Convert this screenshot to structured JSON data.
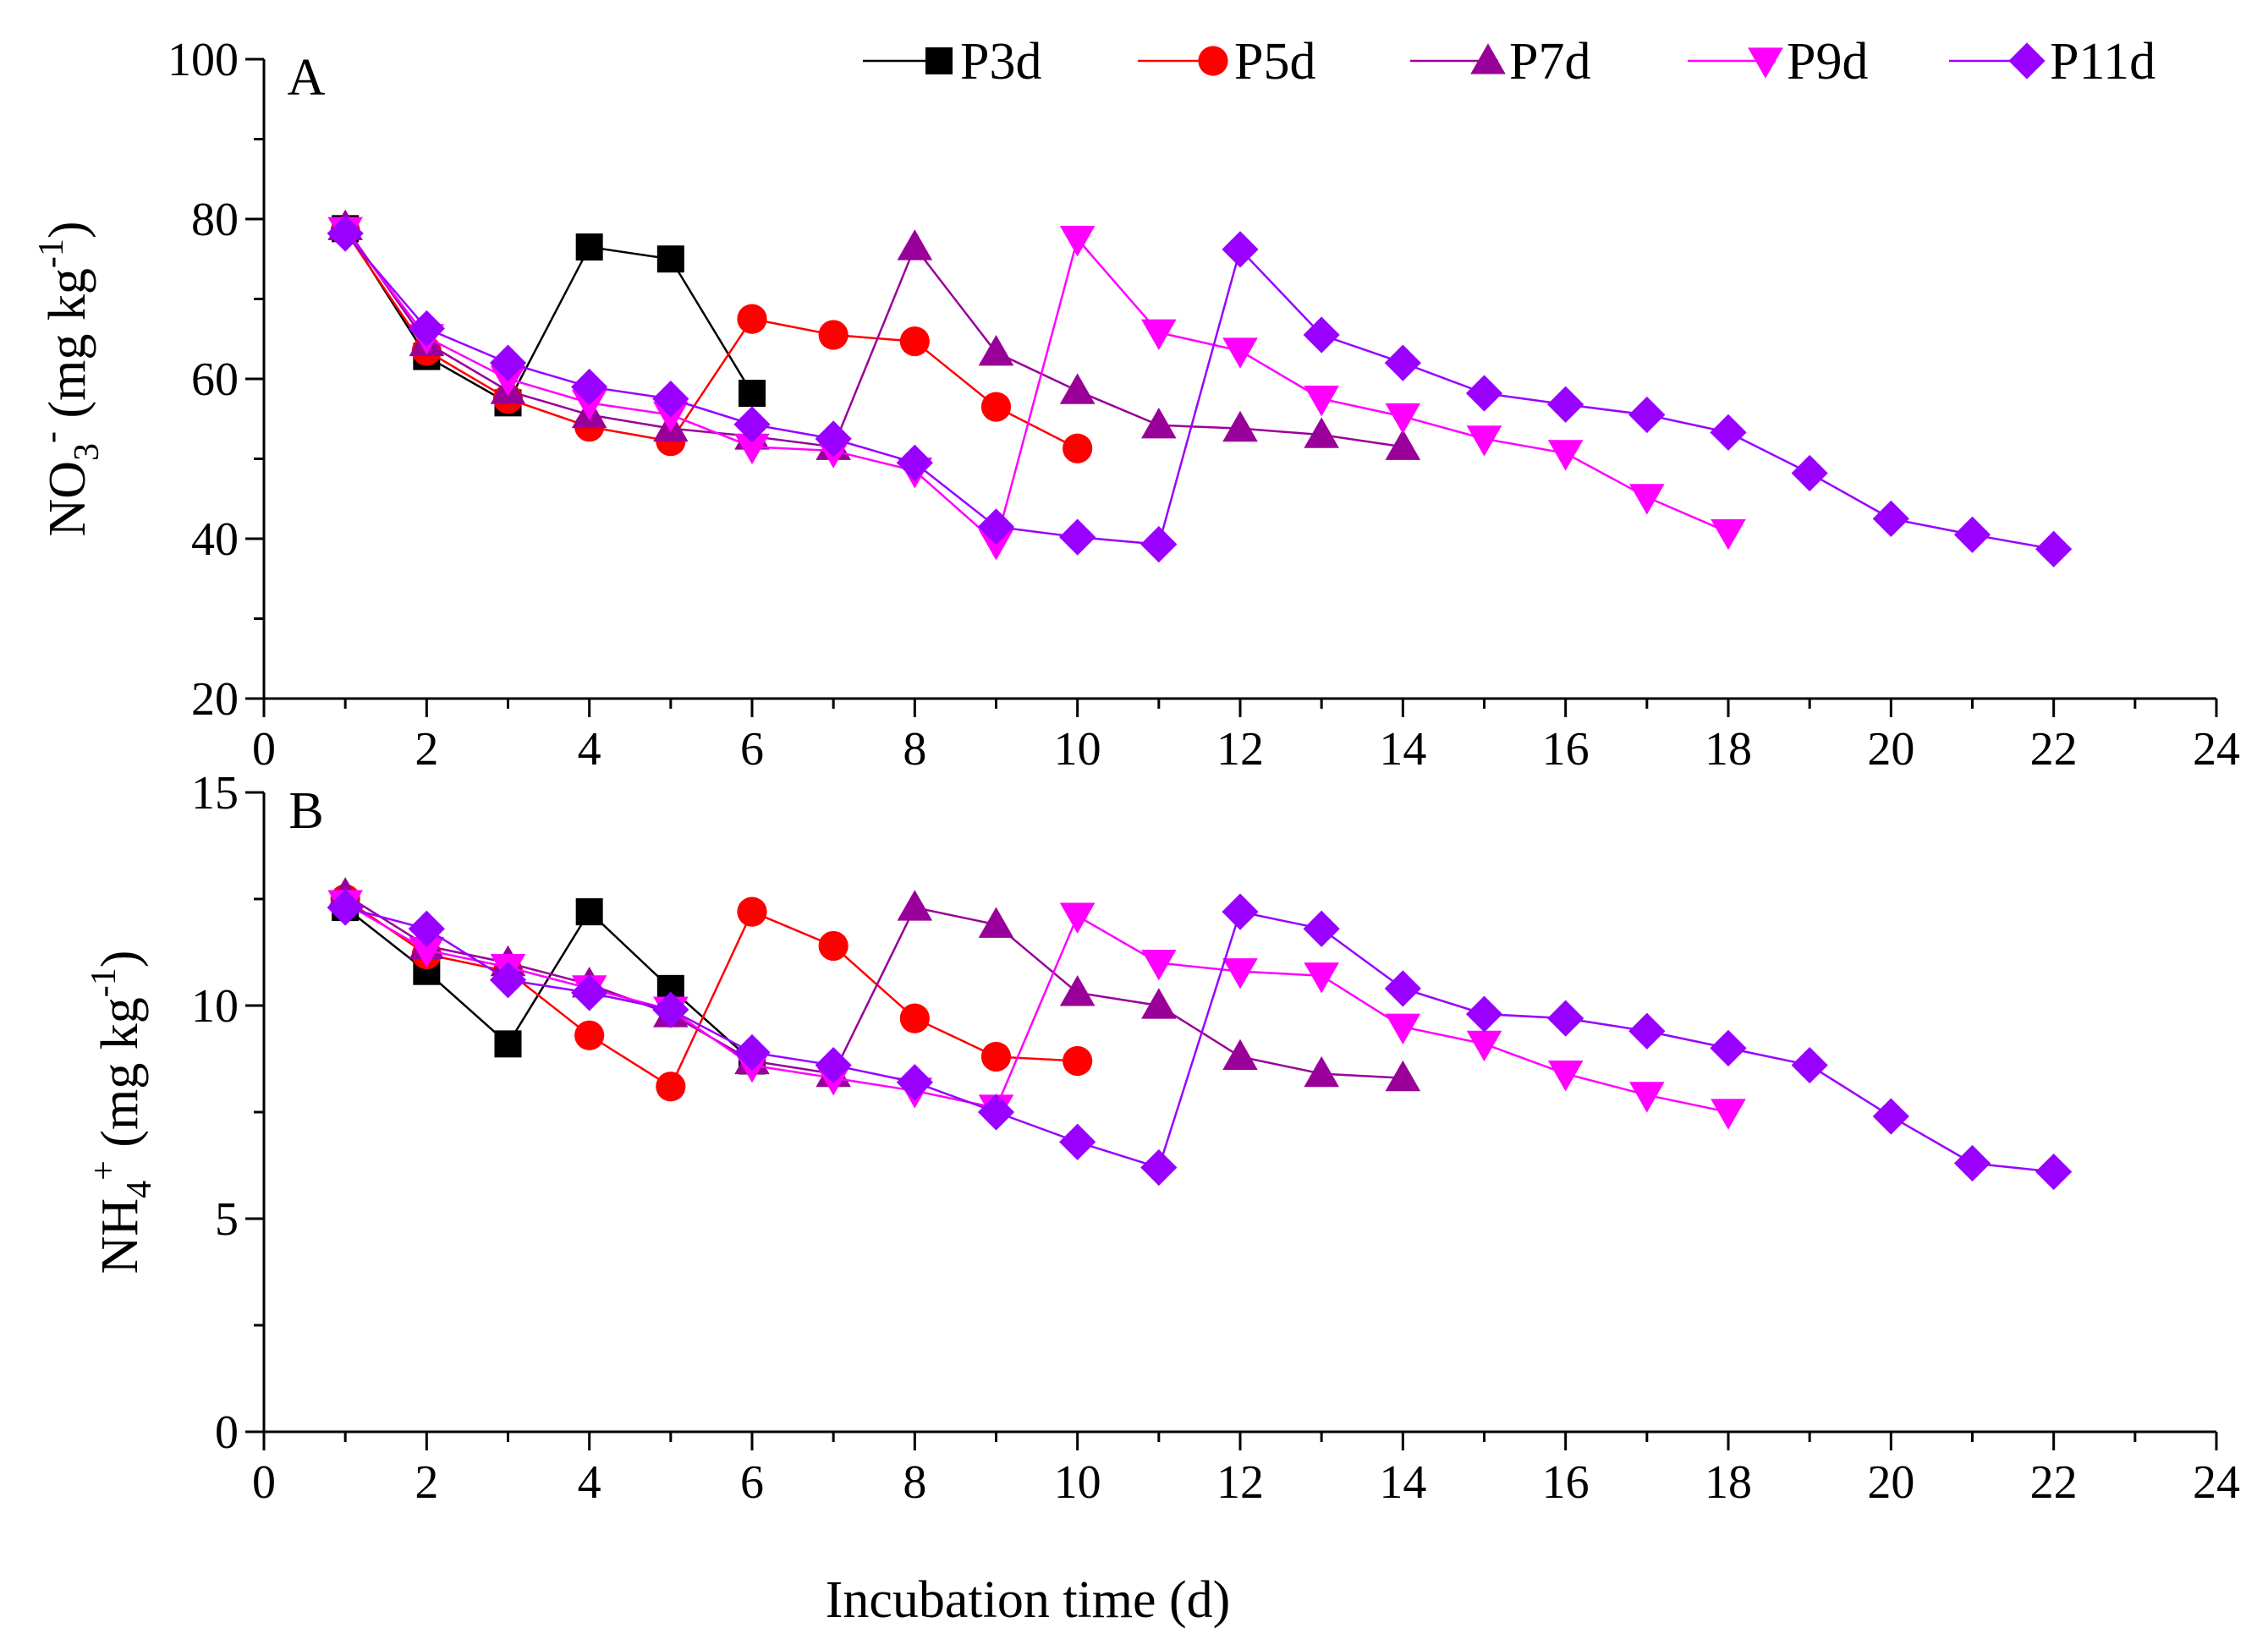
{
  "chart_data": {
    "type": "line",
    "x_label": "Incubation time (d)",
    "legend_position": "top-right",
    "grid": false,
    "series_styles": [
      {
        "name": "P3d",
        "color": "#000000",
        "marker": "square"
      },
      {
        "name": "P5d",
        "color": "#ff0000",
        "marker": "circle"
      },
      {
        "name": "P7d",
        "color": "#990099",
        "marker": "triangle-up"
      },
      {
        "name": "P9d",
        "color": "#ff00ff",
        "marker": "triangle-down"
      },
      {
        "name": "P11d",
        "color": "#9900ff",
        "marker": "diamond"
      }
    ],
    "panels": [
      {
        "id": "A",
        "letter": "A",
        "y_label": {
          "main": "NO",
          "sub": "3",
          "sup": "-",
          "unit_before": " (mg kg",
          "unit_sup": "-1",
          "unit_after": ")"
        },
        "xlim": [
          0,
          24
        ],
        "ylim": [
          20,
          100
        ],
        "x_ticks": [
          0,
          2,
          4,
          6,
          8,
          10,
          12,
          14,
          16,
          18,
          20,
          22,
          24
        ],
        "x_tick_labels": [
          "0",
          "2",
          "4",
          "6",
          "8",
          "10",
          "12",
          "14",
          "16",
          "18",
          "20",
          "22",
          "24"
        ],
        "y_ticks": [
          20,
          40,
          60,
          80,
          100
        ],
        "y_tick_labels": [
          "20",
          "40",
          "60",
          "80",
          "100"
        ],
        "series": [
          {
            "name": "P3d",
            "x": [
              1,
              2,
              3,
              4,
              5,
              6
            ],
            "y": [
              78.8,
              62.8,
              57.0,
              76.5,
              75.0,
              58.2
            ]
          },
          {
            "name": "P5d",
            "x": [
              1,
              2,
              3,
              4,
              5,
              6,
              7,
              8,
              9,
              10
            ],
            "y": [
              78.5,
              63.5,
              57.5,
              54.0,
              52.2,
              67.5,
              65.5,
              64.7,
              56.5,
              51.3
            ]
          },
          {
            "name": "P7d",
            "x": [
              1,
              2,
              3,
              4,
              5,
              6,
              7,
              8,
              9,
              10,
              11,
              12,
              13,
              14
            ],
            "y": [
              79.0,
              64.5,
              58.5,
              55.5,
              53.8,
              52.8,
              51.5,
              76.5,
              63.3,
              58.5,
              54.2,
              53.8,
              53.0,
              51.5
            ]
          },
          {
            "name": "P9d",
            "x": [
              1,
              2,
              3,
              4,
              5,
              6,
              7,
              8,
              9,
              10,
              11,
              12,
              13,
              14,
              15,
              16,
              17,
              18
            ],
            "y": [
              78.6,
              65.2,
              60.0,
              57.0,
              55.5,
              51.5,
              51.0,
              48.5,
              39.5,
              77.5,
              65.8,
              63.5,
              57.5,
              55.3,
              52.5,
              50.7,
              45.2,
              40.8
            ]
          },
          {
            "name": "P11d",
            "x": [
              1,
              2,
              3,
              4,
              5,
              6,
              7,
              8,
              9,
              10,
              11,
              12,
              13,
              14,
              15,
              16,
              17,
              18,
              19,
              20,
              21,
              22
            ],
            "y": [
              78.2,
              66.3,
              62.0,
              59.0,
              57.5,
              54.3,
              52.5,
              49.5,
              41.5,
              40.2,
              39.3,
              76.2,
              65.5,
              62.0,
              58.2,
              56.8,
              55.5,
              53.3,
              48.2,
              42.5,
              40.5,
              38.7
            ]
          }
        ]
      },
      {
        "id": "B",
        "letter": "B",
        "y_label": {
          "main": "NH",
          "sub": "4",
          "sup": "+",
          "unit_before": " (mg kg",
          "unit_sup": "-1",
          "unit_after": ")"
        },
        "xlim": [
          0,
          24
        ],
        "ylim": [
          0,
          15
        ],
        "x_ticks": [
          0,
          2,
          4,
          6,
          8,
          10,
          12,
          14,
          16,
          18,
          20,
          22,
          24
        ],
        "x_tick_labels": [
          "0",
          "2",
          "4",
          "6",
          "8",
          "10",
          "12",
          "14",
          "16",
          "18",
          "20",
          "22",
          "24"
        ],
        "y_ticks": [
          0,
          5,
          10,
          15
        ],
        "y_tick_labels": [
          "0",
          "5",
          "10",
          "15"
        ],
        "series": [
          {
            "name": "P3d",
            "x": [
              1,
              2,
              3,
              4,
              5,
              6
            ],
            "y": [
              12.3,
              10.8,
              9.1,
              12.2,
              10.4,
              8.7
            ]
          },
          {
            "name": "P5d",
            "x": [
              1,
              2,
              3,
              4,
              5,
              6,
              7,
              8,
              9,
              10
            ],
            "y": [
              12.5,
              11.2,
              10.8,
              9.3,
              8.1,
              12.2,
              11.4,
              9.7,
              8.8,
              8.7
            ]
          },
          {
            "name": "P7d",
            "x": [
              1,
              2,
              3,
              4,
              5,
              6,
              7,
              8,
              9,
              10,
              11,
              12,
              13,
              14
            ],
            "y": [
              12.6,
              11.4,
              11.0,
              10.5,
              9.8,
              8.7,
              8.4,
              12.3,
              11.9,
              10.3,
              10.0,
              8.8,
              8.4,
              8.3
            ]
          },
          {
            "name": "P9d",
            "x": [
              1,
              2,
              3,
              4,
              5,
              6,
              7,
              8,
              9,
              10,
              11,
              12,
              13,
              14,
              15,
              16,
              17,
              18
            ],
            "y": [
              12.4,
              11.3,
              10.9,
              10.4,
              9.9,
              8.6,
              8.3,
              8.0,
              7.6,
              12.1,
              11.0,
              10.8,
              10.7,
              9.5,
              9.1,
              8.4,
              7.9,
              7.5
            ]
          },
          {
            "name": "P11d",
            "x": [
              1,
              2,
              3,
              4,
              5,
              6,
              7,
              8,
              9,
              10,
              11,
              12,
              13,
              14,
              15,
              16,
              17,
              18,
              19,
              20,
              21,
              22
            ],
            "y": [
              12.3,
              11.8,
              10.6,
              10.3,
              9.9,
              8.9,
              8.6,
              8.2,
              7.5,
              6.8,
              6.2,
              12.2,
              11.8,
              10.4,
              9.8,
              9.7,
              9.4,
              9.0,
              8.6,
              7.4,
              6.3,
              6.1
            ]
          }
        ]
      }
    ]
  }
}
